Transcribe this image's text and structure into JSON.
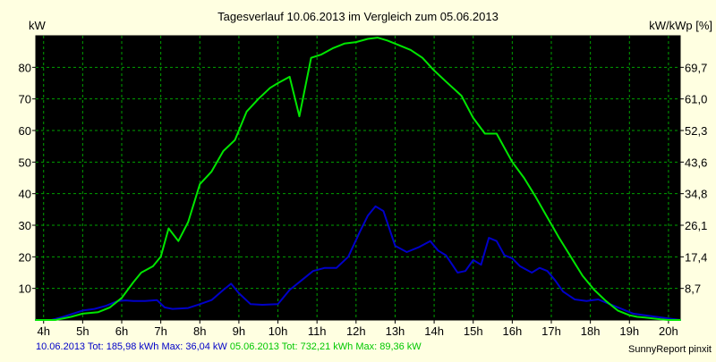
{
  "chart_data": {
    "type": "line",
    "title": "Tagesverlauf 10.06.2013 im Vergleich zum 05.06.2013",
    "ylabel_left": "kW",
    "ylabel_right": "kW/kWp [%]",
    "x_ticks": [
      "4h",
      "5h",
      "6h",
      "7h",
      "8h",
      "9h",
      "10h",
      "11h",
      "12h",
      "13h",
      "14h",
      "15h",
      "16h",
      "17h",
      "18h",
      "19h",
      "20h"
    ],
    "x_range": [
      3.8,
      20.3
    ],
    "ylim": [
      0,
      90
    ],
    "y_ticks": [
      10,
      20,
      30,
      40,
      50,
      60,
      70,
      80
    ],
    "y_ticks_right": [
      "8,7",
      "17,4",
      "26,1",
      "34,8",
      "43,6",
      "52,3",
      "61,0",
      "69,7"
    ],
    "grid": true,
    "series": [
      {
        "name": "10.06.2013",
        "color": "#0000c8",
        "x": [
          3.8,
          4.2,
          4.5,
          5.0,
          5.3,
          5.6,
          5.9,
          6.1,
          6.3,
          6.6,
          6.9,
          7.1,
          7.3,
          7.7,
          8.0,
          8.3,
          8.6,
          8.8,
          9.0,
          9.3,
          9.6,
          10.0,
          10.3,
          10.6,
          10.9,
          11.2,
          11.5,
          11.8,
          12.1,
          12.3,
          12.5,
          12.7,
          13.0,
          13.3,
          13.6,
          13.9,
          14.1,
          14.3,
          14.6,
          14.8,
          15.0,
          15.2,
          15.4,
          15.6,
          15.8,
          16.0,
          16.2,
          16.5,
          16.7,
          16.9,
          17.1,
          17.3,
          17.6,
          17.9,
          18.2,
          18.5,
          18.8,
          19.1,
          19.4,
          19.7,
          20.0,
          20.3
        ],
        "y": [
          0,
          0,
          1,
          3,
          3.5,
          4.5,
          6,
          6.2,
          6,
          6,
          6.3,
          4,
          3.5,
          3.8,
          5,
          6.3,
          9.5,
          11.5,
          8.5,
          5,
          4.8,
          5,
          9.5,
          12.5,
          15.5,
          16.5,
          16.5,
          20,
          28,
          33,
          36,
          34.5,
          23.5,
          21.5,
          23,
          25,
          22,
          20.5,
          15,
          15.5,
          19,
          17.5,
          26,
          25,
          20.5,
          19.5,
          17,
          15,
          16.5,
          15.5,
          12.5,
          9,
          6.5,
          6,
          6.5,
          5,
          3.5,
          2,
          1.5,
          1,
          0.5,
          0
        ]
      },
      {
        "name": "05.06.2013",
        "color": "#00e600",
        "x": [
          3.8,
          4.3,
          4.7,
          5.0,
          5.4,
          5.7,
          6.0,
          6.3,
          6.5,
          6.8,
          7.0,
          7.2,
          7.45,
          7.7,
          8.0,
          8.3,
          8.6,
          8.9,
          9.2,
          9.5,
          9.8,
          10.0,
          10.3,
          10.55,
          10.85,
          11.1,
          11.4,
          11.7,
          12.0,
          12.3,
          12.55,
          12.8,
          13.1,
          13.4,
          13.7,
          14.0,
          14.3,
          14.7,
          15.0,
          15.3,
          15.6,
          15.8,
          16.0,
          16.3,
          16.6,
          16.9,
          17.2,
          17.5,
          17.8,
          18.1,
          18.4,
          18.7,
          19.0,
          19.2,
          19.4,
          19.6,
          19.8,
          20.0,
          20.3
        ],
        "y": [
          0,
          0,
          1,
          2,
          2.5,
          4,
          7,
          12,
          15,
          17,
          20,
          29,
          25,
          31,
          43,
          47,
          53.5,
          57,
          66,
          70,
          73.5,
          75,
          77,
          64.5,
          83,
          84,
          86,
          87.5,
          88,
          89,
          89.4,
          88.5,
          87,
          85.5,
          83,
          79,
          75.5,
          71,
          64,
          59,
          59,
          54.5,
          50,
          45,
          39,
          32.5,
          26,
          20,
          14,
          9.5,
          6,
          3,
          1.5,
          1,
          0.8,
          0.5,
          0.2,
          0,
          0
        ]
      }
    ]
  },
  "legend": {
    "s1_text": "10.06.2013 Tot: 185,98 kWh Max: 36,04 kW",
    "s2_text": "05.06.2013 Tot: 732,21 kWh Max: 89,36 kW",
    "s1_color": "#0000c8",
    "s2_color": "#00c800"
  },
  "credit": "SunnyReport pinxit"
}
